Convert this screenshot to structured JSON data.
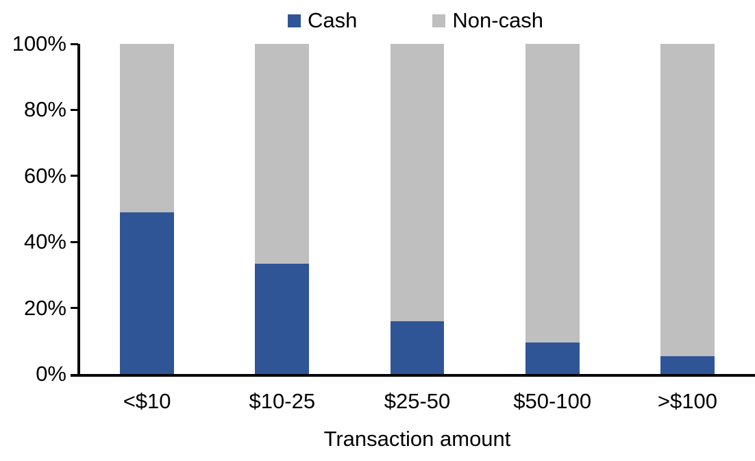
{
  "chart_data": {
    "type": "bar",
    "stacked": true,
    "percent_stacked": true,
    "title": "",
    "xlabel": "Transaction amount",
    "ylabel": "",
    "categories": [
      "<$10",
      "$10-25",
      "$25-50",
      "$50-100",
      ">$100"
    ],
    "series": [
      {
        "name": "Cash",
        "color": "#2F5597",
        "values": [
          49,
          33.5,
          16,
          9.5,
          5.5
        ]
      },
      {
        "name": "Non-cash",
        "color": "#BFBFBF",
        "values": [
          51,
          66.5,
          84,
          90.5,
          94.5
        ]
      }
    ],
    "ylim": [
      0,
      100
    ],
    "yticks": [
      "0%",
      "20%",
      "40%",
      "60%",
      "80%",
      "100%"
    ],
    "legend_position": "top",
    "grid": false,
    "axis_color": "#000000",
    "text_color": "#000000",
    "background_color": "#FFFFFF"
  }
}
